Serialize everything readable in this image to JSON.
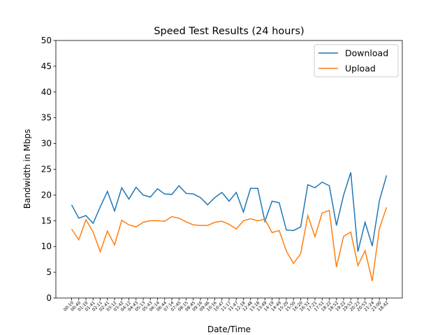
{
  "chart_data": {
    "type": "line",
    "title": "Speed Test Results (24 hours)",
    "x_label": "Date/Time",
    "y_label": "Bandwidth in Mbps",
    "categories": [
      "00:10",
      "00:40",
      "01:10",
      "01:41",
      "02:11",
      "02:41",
      "03:12",
      "03:42",
      "04:12",
      "04:43",
      "05:13",
      "05:43",
      "06:14",
      "06:44",
      "07:14",
      "07:45",
      "08:15",
      "08:45",
      "09:16",
      "09:46",
      "10:16",
      "10:47",
      "11:17",
      "11:47",
      "12:18",
      "12:48",
      "13:18",
      "13:49",
      "14:19",
      "14:49",
      "15:20",
      "15:50",
      "16:20",
      "16:51",
      "17:21",
      "17:51",
      "18:22",
      "18:52",
      "19:22",
      "19:53",
      "20:23",
      "20:53",
      "21:24",
      "23:00",
      "18:42"
    ],
    "series": [
      {
        "name": "Download",
        "color": "#1f77b4",
        "values": [
          18.1,
          15.5,
          16,
          14.5,
          17.7,
          20.7,
          16.9,
          21.4,
          19.2,
          21.5,
          20,
          19.6,
          21.2,
          20.2,
          20.1,
          21.8,
          20.3,
          20.2,
          19.5,
          18.1,
          19.5,
          20.5,
          18.8,
          20.5,
          16.7,
          21.3,
          21.3,
          14.9,
          18.8,
          18.5,
          13.2,
          13.1,
          13.8,
          22,
          21.4,
          22.5,
          21.8,
          14.1,
          20,
          24.4,
          9,
          14.7,
          10.1,
          18.9,
          23.8
        ]
      },
      {
        "name": "Upload",
        "color": "#ff7f0e",
        "values": [
          13.4,
          11.3,
          15.2,
          12.8,
          9,
          13,
          10.3,
          15.1,
          14.2,
          13.8,
          14.7,
          15,
          15,
          14.9,
          15.8,
          15.5,
          14.8,
          14.2,
          14.1,
          14.1,
          14.7,
          14.9,
          14.3,
          13.4,
          15,
          15.4,
          15,
          15.3,
          12.7,
          13.1,
          9.1,
          6.7,
          8.6,
          16,
          11.9,
          16.5,
          17,
          6,
          12,
          12.8,
          6.3,
          9.2,
          3.3,
          13.5,
          17.6
        ]
      }
    ],
    "ylim": [
      0,
      50
    ],
    "yticks": [
      0,
      5,
      10,
      15,
      20,
      25,
      30,
      35,
      40,
      45,
      50
    ],
    "legend": "upper right"
  }
}
